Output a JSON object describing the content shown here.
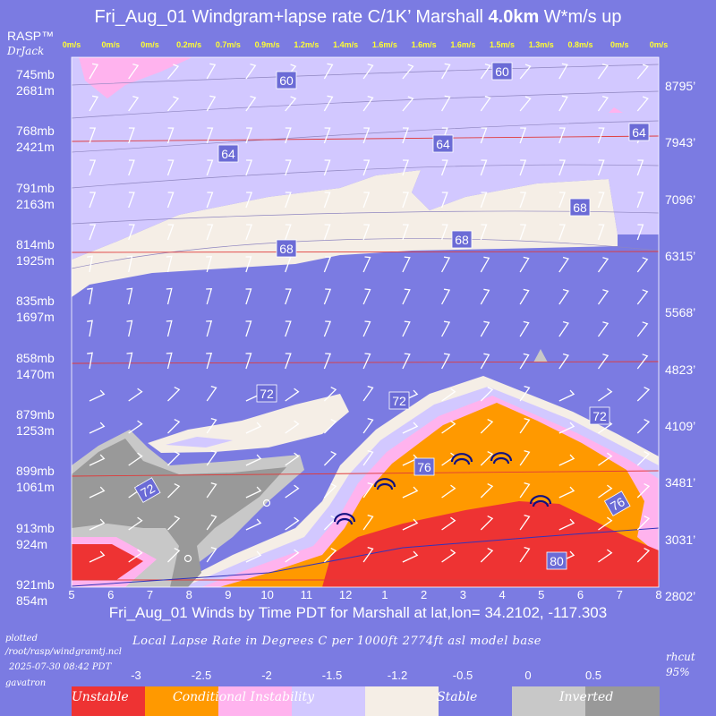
{
  "header": {
    "title_main": "Fri_Aug_01 Windgram+lapse rate C/1K’  Marshall",
    "title_bold": "4.0km",
    "title_tail": "  W*m/s up",
    "brand": "RASP™",
    "author": "DrJack"
  },
  "chart_data": {
    "type": "heatmap",
    "title": "Fri_Aug_01 Windgram+lapse rate C/1K’  Marshall 4.0km  W*m/s up",
    "xlabel": "Fri_Aug_01 Winds by Time PDT for Marshall at lat,lon= 34.2102, -117.303",
    "x_ticks": [
      "5",
      "6",
      "7",
      "8",
      "9",
      "10",
      "11",
      "12",
      "1",
      "2",
      "3",
      "4",
      "5",
      "6",
      "7",
      "8"
    ],
    "wstar_labels": [
      "0m/s",
      "0m/s",
      "0m/s",
      "0.2m/s",
      "0.7m/s",
      "0.9m/s",
      "1.2m/s",
      "1.4m/s",
      "1.6m/s",
      "1.6m/s",
      "1.6m/s",
      "1.5m/s",
      "1.3m/s",
      "0.8m/s",
      "0m/s",
      "0m/s"
    ],
    "pressure_levels": [
      {
        "mb": "745mb",
        "m": "2681m",
        "ft": "8795’"
      },
      {
        "mb": "768mb",
        "m": "2421m",
        "ft": "7943’"
      },
      {
        "mb": "791mb",
        "m": "2163m",
        "ft": "7096’"
      },
      {
        "mb": "814mb",
        "m": "1925m",
        "ft": "6315’"
      },
      {
        "mb": "835mb",
        "m": "1697m",
        "ft": "5568’"
      },
      {
        "mb": "858mb",
        "m": "1470m",
        "ft": "4823’"
      },
      {
        "mb": "879mb",
        "m": "1253m",
        "ft": "4109’"
      },
      {
        "mb": "899mb",
        "m": "1061m",
        "ft": "3481’"
      },
      {
        "mb": "913mb",
        "m": "924m",
        "ft": "3031’"
      },
      {
        "mb": "921mb",
        "m": "854m",
        "ft": "2802’"
      }
    ],
    "contour_labels": [
      "60",
      "60",
      "64",
      "64",
      "64",
      "68",
      "68",
      "68",
      "72",
      "72",
      "72",
      "72",
      "76",
      "76",
      "80"
    ],
    "colorbar": {
      "values": [
        "-3",
        "-2.5",
        "-2",
        "-1.5",
        "-1.2",
        "-0.5",
        "0",
        "0.5"
      ],
      "categories": [
        "Unstable",
        "Conditional Instability",
        "Stable",
        "Inverted"
      ],
      "colors": [
        "#ee3333",
        "#ff9900",
        "#ffb3ee",
        "#d2c8ff",
        "#f5eee6",
        "#7b7be2",
        "#c8c8c8",
        "#999999"
      ]
    }
  },
  "footer": {
    "plotted": "plotted",
    "script_path": "/root/rasp/windgramtj.ncl",
    "timestamp": "2025-07-30 08:42 PDT",
    "host": "gavatron",
    "lapse_caption": "Local Lapse Rate in Degrees C per 1000ft  2774ft asl model base",
    "rhcut": "rhcut",
    "rhcut_value": "95%"
  }
}
